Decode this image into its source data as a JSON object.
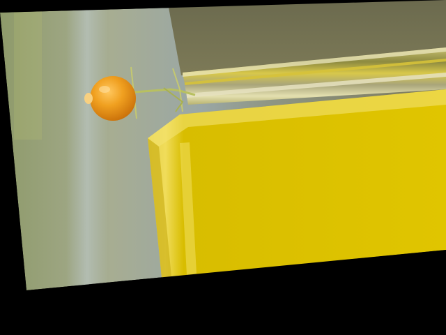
{
  "image": {
    "description_tags": [
      "photo-region",
      "black-border",
      "yellow-block",
      "orange-fruit"
    ],
    "colors": {
      "border": "#000000",
      "background_left": "#8f9b7e",
      "background_top": "#6f6b4f",
      "block_face": "#e0c400",
      "block_highlight": "#f2e05a",
      "block_shadow": "#b89e00",
      "fruit": "#e8900e",
      "fruit_highlight": "#ffc860",
      "stem": "#b8c060"
    }
  }
}
